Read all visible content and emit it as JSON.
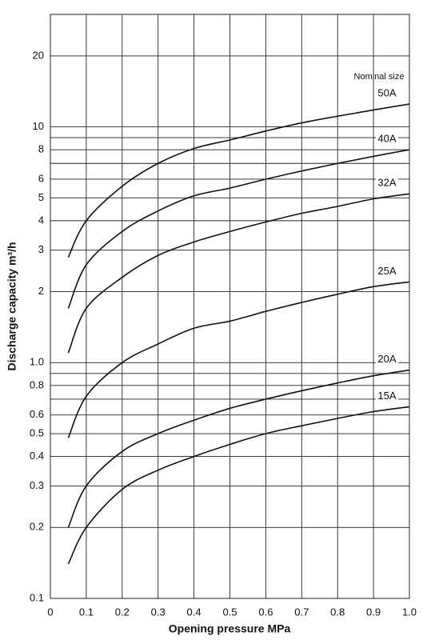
{
  "chart_data": {
    "type": "line",
    "annotation": "Nominal size",
    "x_label": "Opening pressure MPa",
    "y_label": "Discharge capacity m³/h",
    "log_y": true,
    "grid": true,
    "xlim": [
      0,
      1.0
    ],
    "xticks": [
      0,
      0.1,
      0.2,
      0.3,
      0.4,
      0.5,
      0.6,
      0.7,
      0.8,
      0.9,
      {
        "value": 1.0,
        "label": "1.0"
      }
    ],
    "ylim": [
      0.1,
      30
    ],
    "yticks": [
      0.1,
      0.2,
      0.3,
      0.4,
      0.5,
      0.6,
      0.8,
      {
        "value": 1.0,
        "label": "1.0"
      },
      2,
      3,
      4,
      5,
      6,
      8,
      10,
      20
    ],
    "minor_gridlines": [
      0.7,
      0.9,
      7,
      9
    ],
    "x": [
      0.05,
      0.1,
      0.2,
      0.3,
      0.4,
      0.5,
      0.6,
      0.7,
      0.8,
      0.9,
      1.0
    ],
    "series": [
      {
        "name": "50A",
        "color": "#111111",
        "values": [
          2.8,
          4.0,
          5.6,
          7.0,
          8.1,
          8.8,
          9.6,
          10.4,
          11.1,
          11.8,
          12.5
        ]
      },
      {
        "name": "40A",
        "color": "#111111",
        "values": [
          1.7,
          2.6,
          3.6,
          4.4,
          5.1,
          5.5,
          6.0,
          6.5,
          7.0,
          7.5,
          8.0
        ]
      },
      {
        "name": "32A",
        "color": "#111111",
        "values": [
          1.1,
          1.7,
          2.3,
          2.85,
          3.25,
          3.6,
          3.95,
          4.3,
          4.6,
          4.95,
          5.2
        ]
      },
      {
        "name": "25A",
        "color": "#111111",
        "values": [
          0.48,
          0.72,
          1.0,
          1.2,
          1.4,
          1.5,
          1.65,
          1.8,
          1.95,
          2.1,
          2.2
        ]
      },
      {
        "name": "20A",
        "color": "#111111",
        "values": [
          0.2,
          0.3,
          0.42,
          0.5,
          0.57,
          0.64,
          0.7,
          0.76,
          0.82,
          0.88,
          0.93
        ]
      },
      {
        "name": "15A",
        "color": "#111111",
        "values": [
          0.14,
          0.2,
          0.29,
          0.35,
          0.4,
          0.45,
          0.5,
          0.54,
          0.58,
          0.62,
          0.65
        ]
      }
    ]
  }
}
